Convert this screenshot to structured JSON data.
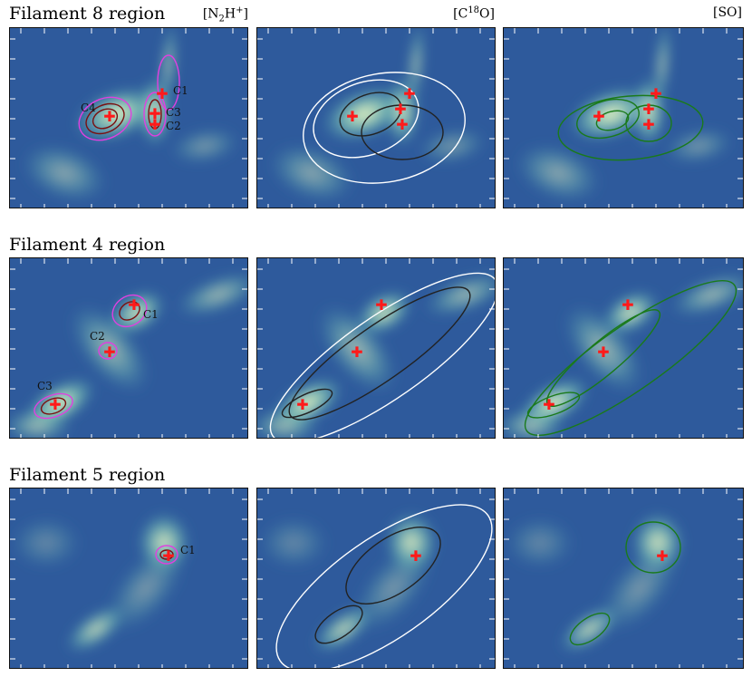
{
  "rows": [
    {
      "title": "Filament 8 region",
      "panels": [
        {
          "label": "[N₂H⁺]",
          "contour_color": "#e040e0",
          "cores": [
            "C1",
            "C2",
            "C3",
            "C4"
          ]
        },
        {
          "label": "[C¹⁸O]",
          "contour_color": "#ffffff"
        },
        {
          "label": "[SO]",
          "contour_color": "#1a7a1a"
        }
      ]
    },
    {
      "title": "Filament 4 region",
      "panels": [
        {
          "label": "",
          "contour_color": "#e040e0",
          "cores": [
            "C1",
            "C2",
            "C3"
          ]
        },
        {
          "label": "",
          "contour_color": "#ffffff"
        },
        {
          "label": "",
          "contour_color": "#1a7a1a"
        }
      ]
    },
    {
      "title": "Filament 5 region",
      "panels": [
        {
          "label": "",
          "contour_color": "#e040e0",
          "cores": [
            "C1"
          ]
        },
        {
          "label": "",
          "contour_color": "#ffffff"
        },
        {
          "label": "",
          "contour_color": "#1a7a1a"
        }
      ]
    }
  ],
  "colors": {
    "background_map": "#2e5a9c",
    "emission_bright": "#f4f7c2",
    "core_marker": "#ff1a1a",
    "contour_dark": "#222222"
  }
}
